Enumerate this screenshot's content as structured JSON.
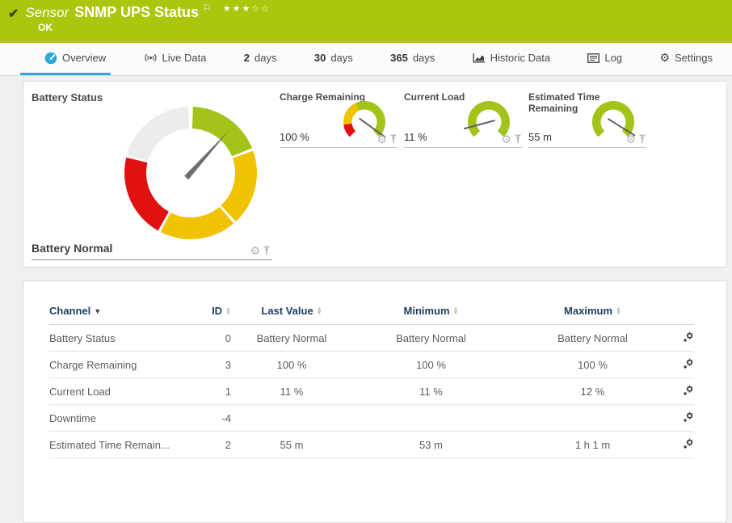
{
  "header": {
    "check_icon": "✔",
    "kind_label": "Sensor",
    "title": "SNMP UPS Status",
    "flag_icon": "⚐",
    "stars": "★★★☆☆",
    "status": "OK"
  },
  "tabs": [
    {
      "id": "overview",
      "label": "Overview",
      "active": true
    },
    {
      "id": "live-data",
      "label": "Live Data"
    },
    {
      "id": "2-days",
      "num": "2",
      "label": "days"
    },
    {
      "id": "30-days",
      "num": "30",
      "label": "days"
    },
    {
      "id": "365-days",
      "num": "365",
      "label": "days"
    },
    {
      "id": "historic-data",
      "label": "Historic Data"
    },
    {
      "id": "log",
      "label": "Log"
    },
    {
      "id": "settings",
      "label": "Settings",
      "gear_glyph": "⚙"
    }
  ],
  "battery_panel": {
    "title": "Battery Status",
    "status_label": "Battery Normal",
    "gear_glyph": "⚙"
  },
  "mini_panels": [
    {
      "title": "Charge Remaining",
      "value": "100 %",
      "gear_glyph": "⚙"
    },
    {
      "title": "Current Load",
      "value": "11 %",
      "gear_glyph": "⚙"
    },
    {
      "title": "Estimated Time Remaining",
      "value": "55 m",
      "gear_glyph": "⚙"
    }
  ],
  "table": {
    "columns": [
      "Channel",
      "ID",
      "Last Value",
      "Minimum",
      "Maximum"
    ],
    "rows": [
      {
        "channel": "Battery Status",
        "id": "0",
        "last": "Battery Normal",
        "min": "Battery Normal",
        "max": "Battery Normal"
      },
      {
        "channel": "Charge Remaining",
        "id": "3",
        "last": "100 %",
        "min": "100 %",
        "max": "100 %"
      },
      {
        "channel": "Current Load",
        "id": "1",
        "last": "11 %",
        "min": "11 %",
        "max": "12 %"
      },
      {
        "channel": "Downtime",
        "id": "-4",
        "last": "",
        "min": "",
        "max": ""
      },
      {
        "channel": "Estimated Time Remain...",
        "id": "2",
        "last": "55 m",
        "min": "53 m",
        "max": "1 h 1 m"
      }
    ]
  },
  "colors": {
    "header_green": "#aec50d",
    "accent_blue": "#29a9dd",
    "green": "#a1c31a",
    "yellow": "#f0c200",
    "red": "#e01111",
    "lightgray": "#ececec",
    "needle": "#6e6e6e",
    "mini_needle": "#5f5f5f",
    "table_header_text": "#1e3f63"
  },
  "gauges": {
    "battery": {
      "size": 170,
      "r_outer": 82,
      "r_inner": 55,
      "segments": [
        {
          "from": 2,
          "to": 68,
          "color": "green"
        },
        {
          "from": 70.5,
          "to": 137,
          "color": "yellow"
        },
        {
          "from": 139.5,
          "to": 207,
          "color": "yellow"
        },
        {
          "from": 209.5,
          "to": 283.5,
          "color": "red"
        },
        {
          "from": 286,
          "to": 358,
          "color": "lightgray"
        }
      ],
      "needle": {
        "angle": 42,
        "length": 72,
        "style": "taper"
      }
    },
    "charge": {
      "size": 62,
      "r_outer": 26,
      "r_inner": 15.5,
      "segments": [
        {
          "from": -135,
          "to": -97,
          "color": "red"
        },
        {
          "from": -97,
          "to": -25,
          "color": "yellow"
        },
        {
          "from": -25,
          "to": 135,
          "color": "green"
        }
      ],
      "needle": {
        "angle": 126,
        "length": 31,
        "style": "line"
      }
    },
    "load": {
      "size": 62,
      "r_outer": 26,
      "r_inner": 15.5,
      "segments": [
        {
          "from": -135,
          "to": 135,
          "color": "green"
        }
      ],
      "needle": {
        "angle": -105,
        "length": 31,
        "style": "line"
      }
    },
    "time": {
      "size": 62,
      "r_outer": 26,
      "r_inner": 15.5,
      "segments": [
        {
          "from": -135,
          "to": 135,
          "color": "green"
        }
      ],
      "needle": {
        "angle": 122,
        "length": 31,
        "style": "line"
      }
    }
  }
}
